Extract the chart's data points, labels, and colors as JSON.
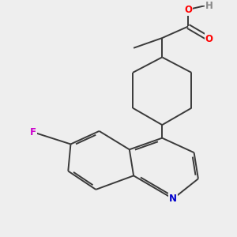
{
  "background_color": "#eeeeee",
  "bond_color": "#3a3a3a",
  "atom_colors": {
    "O": "#ff0000",
    "N": "#0000cc",
    "F": "#cc00cc",
    "H": "#888888",
    "C": "#3a3a3a"
  },
  "figsize": [
    3.0,
    3.0
  ],
  "dpi": 100
}
